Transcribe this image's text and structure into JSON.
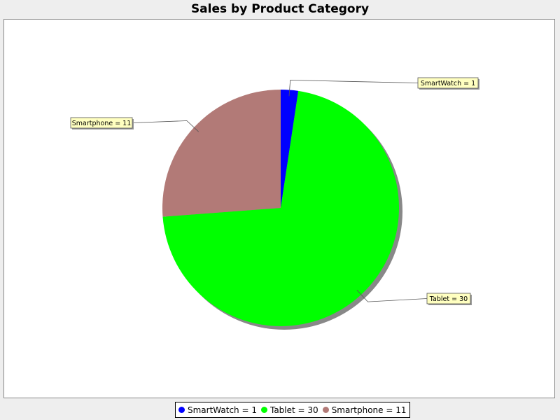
{
  "chart_data": {
    "type": "pie",
    "title": "Sales by Product Category",
    "slices": [
      {
        "name": "SmartWatch",
        "value": 1,
        "label": "SmartWatch = 1",
        "color": "#0000ff"
      },
      {
        "name": "Tablet",
        "value": 30,
        "label": "Tablet = 30",
        "color": "#00ff00"
      },
      {
        "name": "Smartphone",
        "value": 11,
        "label": "Smartphone = 11",
        "color": "#b27a77"
      }
    ],
    "legend": {
      "position": "bottom"
    },
    "label_box_color": "#ffffc0",
    "shadow_color": "#888888"
  }
}
